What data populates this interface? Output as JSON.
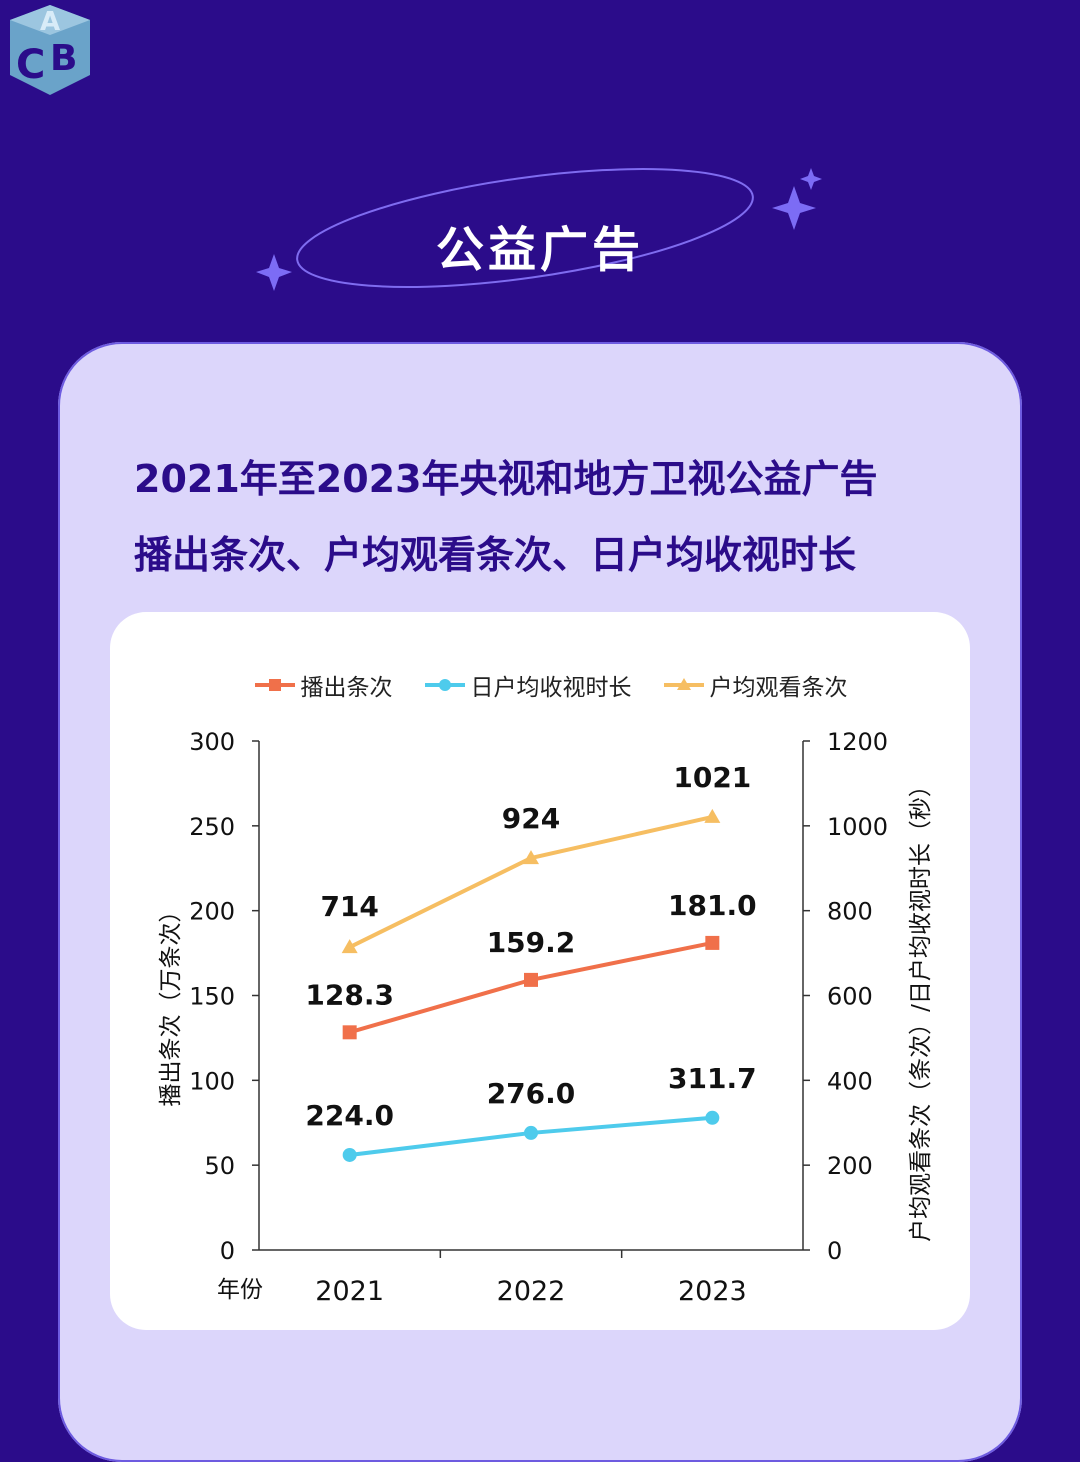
{
  "section_title": "公益广告",
  "subtitle_line1": "2021年至2023年央视和地方卫视公益广告",
  "subtitle_line2": "播出条次、户均观看条次、日户均收视时长",
  "logo_letters": "ACB",
  "chart_data": {
    "type": "line",
    "categories": [
      "2021",
      "2022",
      "2023"
    ],
    "xlabel": "年份",
    "ylabel_left": "播出条次（万条次）",
    "ylabel_right": "户均观看条次（条次）/日户均收视时长（秒）",
    "y_left_ticks": [
      "0",
      "50",
      "100",
      "150",
      "200",
      "250",
      "300"
    ],
    "y_right_ticks": [
      "0",
      "200",
      "400",
      "600",
      "800",
      "1000",
      "1200"
    ],
    "ylim_left": [
      0,
      300
    ],
    "ylim_right": [
      0,
      1200
    ],
    "legend_position": "top",
    "series": [
      {
        "name": "播出条次",
        "axis": "left",
        "color": "#f0704a",
        "marker": "square",
        "values": [
          128.3,
          159.2,
          181.0
        ],
        "labels": [
          "128.3",
          "159.2",
          "181.0"
        ]
      },
      {
        "name": "日户均收视时长",
        "axis": "right",
        "color": "#4ecbec",
        "marker": "circle",
        "values": [
          224.0,
          276.0,
          311.7
        ],
        "labels": [
          "224.0",
          "276.0",
          "311.7"
        ]
      },
      {
        "name": "户均观看条次",
        "axis": "right",
        "color": "#f6be62",
        "marker": "triangle",
        "values": [
          714,
          924,
          1021
        ],
        "labels": [
          "714",
          "924",
          "1021"
        ]
      }
    ]
  }
}
